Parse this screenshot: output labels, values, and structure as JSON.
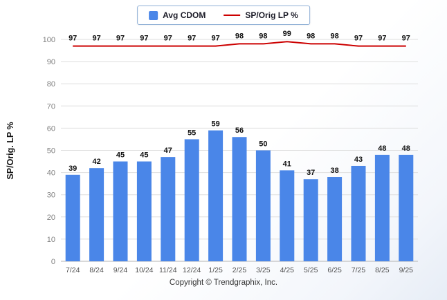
{
  "legend": {
    "series1_label": "Avg CDOM",
    "series2_label": "SP/Orig LP %"
  },
  "ylabel": "SP/Orig. LP %",
  "footer": "Copyright © Trendgraphix, Inc.",
  "colors": {
    "bar": "#4a86e8",
    "line": "#cc0000",
    "grid": "#dedede",
    "axis": "#b3b3b3"
  },
  "chart_data": {
    "type": "bar",
    "categories": [
      "7/24",
      "8/24",
      "9/24",
      "10/24",
      "11/24",
      "12/24",
      "1/25",
      "2/25",
      "3/25",
      "4/25",
      "5/25",
      "6/25",
      "7/25",
      "8/25",
      "9/25"
    ],
    "series": [
      {
        "name": "Avg CDOM",
        "type": "bar",
        "values": [
          39,
          42,
          45,
          45,
          47,
          55,
          59,
          56,
          50,
          41,
          37,
          38,
          43,
          48,
          48
        ]
      },
      {
        "name": "SP/Orig LP %",
        "type": "line",
        "values": [
          97,
          97,
          97,
          97,
          97,
          97,
          97,
          98,
          98,
          99,
          98,
          98,
          97,
          97,
          97
        ]
      }
    ],
    "title": "",
    "xlabel": "",
    "ylabel": "SP/Orig. LP %",
    "ylim": [
      0,
      100
    ],
    "ytick_step": 10,
    "grid": true,
    "legend_position": "top-center"
  }
}
